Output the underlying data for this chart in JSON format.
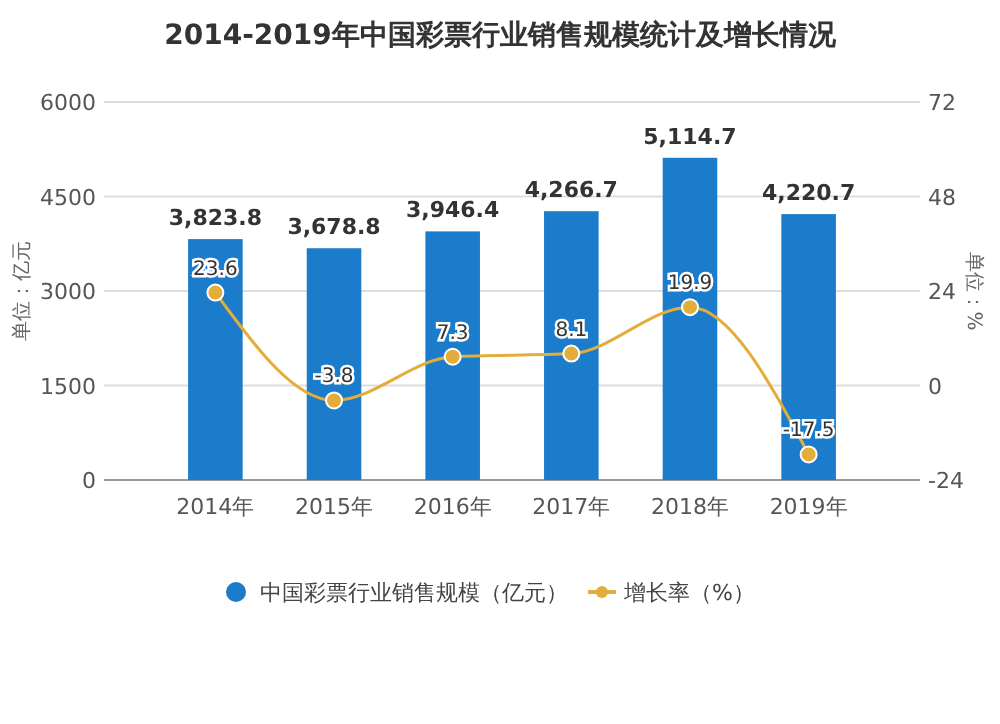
{
  "chart_data": {
    "type": "bar",
    "title": "2014-2019年中国彩票行业销售规模统计及增长情况",
    "categories": [
      "2014年",
      "2015年",
      "2016年",
      "2017年",
      "2018年",
      "2019年"
    ],
    "series": [
      {
        "name": "中国彩票行业销售规模（亿元）",
        "color": "#1b7ccc",
        "values": [
          3823.8,
          3678.8,
          3946.4,
          4266.7,
          5114.7,
          4220.7
        ],
        "value_labels": [
          "3,823.8",
          "3,678.8",
          "3,946.4",
          "4,266.7",
          "5,114.7",
          "4,220.7"
        ]
      },
      {
        "name": "增长率（%）",
        "type": "line",
        "axis": "y2",
        "color": "#e3ad3a",
        "values": [
          23.6,
          -3.8,
          7.3,
          8.1,
          19.9,
          -17.5
        ],
        "value_labels": [
          "23.6",
          "-3.8",
          "7.3",
          "8.1",
          "19.9",
          "-17.5"
        ]
      }
    ],
    "ylabel": "单位：亿元",
    "y2label": "单位：%",
    "ylim": [
      0,
      6000
    ],
    "yticks": [
      0,
      1500,
      3000,
      4500,
      6000
    ],
    "y2lim": [
      -24,
      72
    ],
    "y2ticks": [
      -24,
      0,
      24,
      48,
      72
    ],
    "grid": "y",
    "legend": "bottom",
    "marker": "circle",
    "line_style": "solid"
  }
}
